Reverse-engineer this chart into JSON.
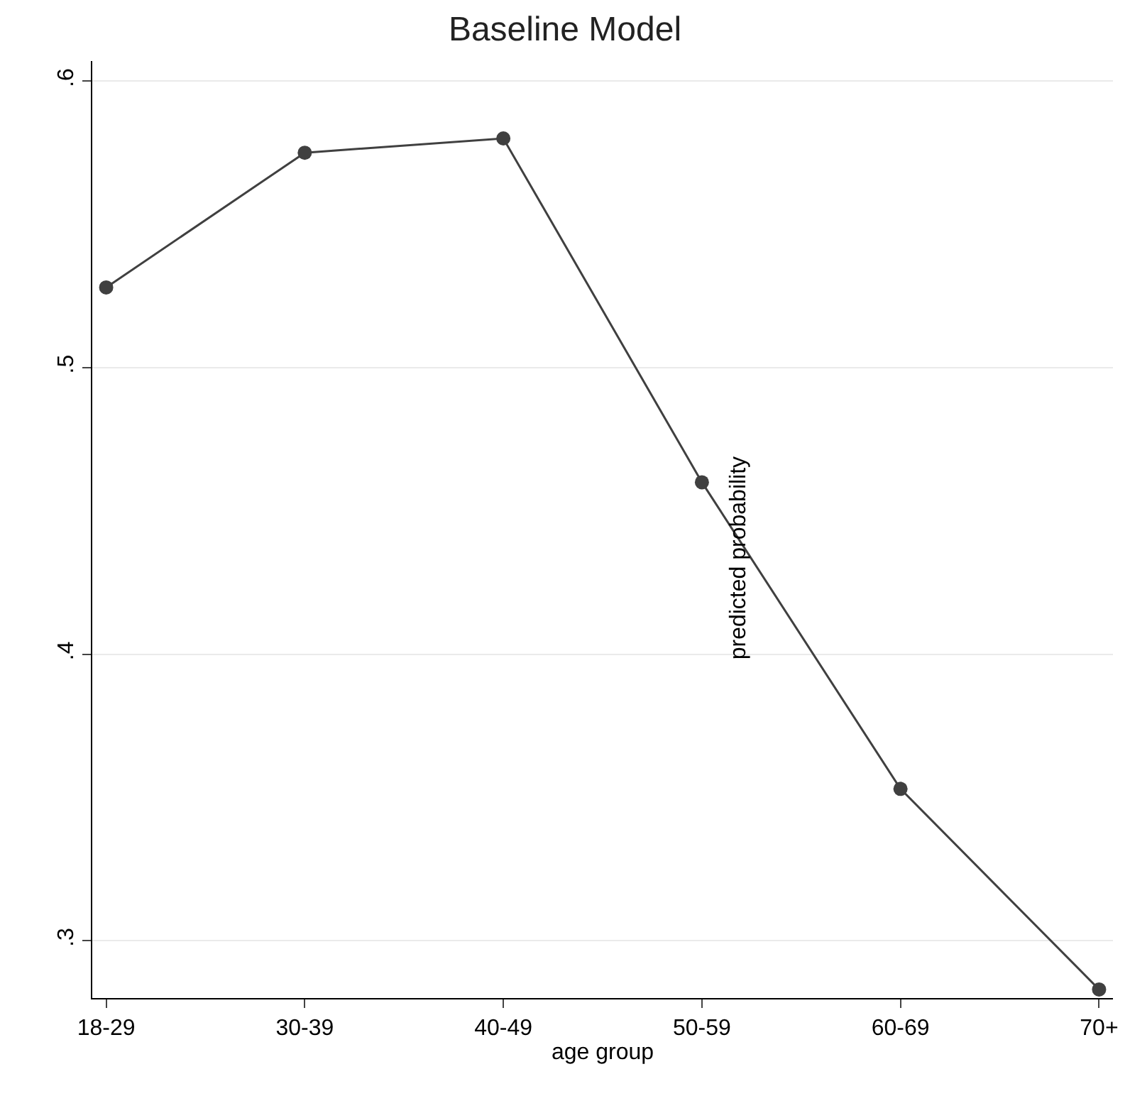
{
  "chart_data": {
    "type": "line",
    "title": "Baseline Model",
    "xlabel": "age group",
    "ylabel": "predicted probability",
    "categories": [
      "18-29",
      "30-39",
      "40-49",
      "50-59",
      "60-69",
      "70+"
    ],
    "series": [
      {
        "color": "#404040",
        "values": [
          0.528,
          0.575,
          0.58,
          0.46,
          0.353,
          0.283
        ]
      }
    ],
    "ylim": [
      0.28,
      0.607
    ],
    "yticks": [
      {
        "value": 0.3,
        "label": ".3"
      },
      {
        "value": 0.4,
        "label": ".4"
      },
      {
        "value": 0.5,
        "label": ".5"
      },
      {
        "value": 0.6,
        "label": ".6"
      }
    ],
    "grid": "y",
    "marker": "circle",
    "line_style": "solid"
  }
}
